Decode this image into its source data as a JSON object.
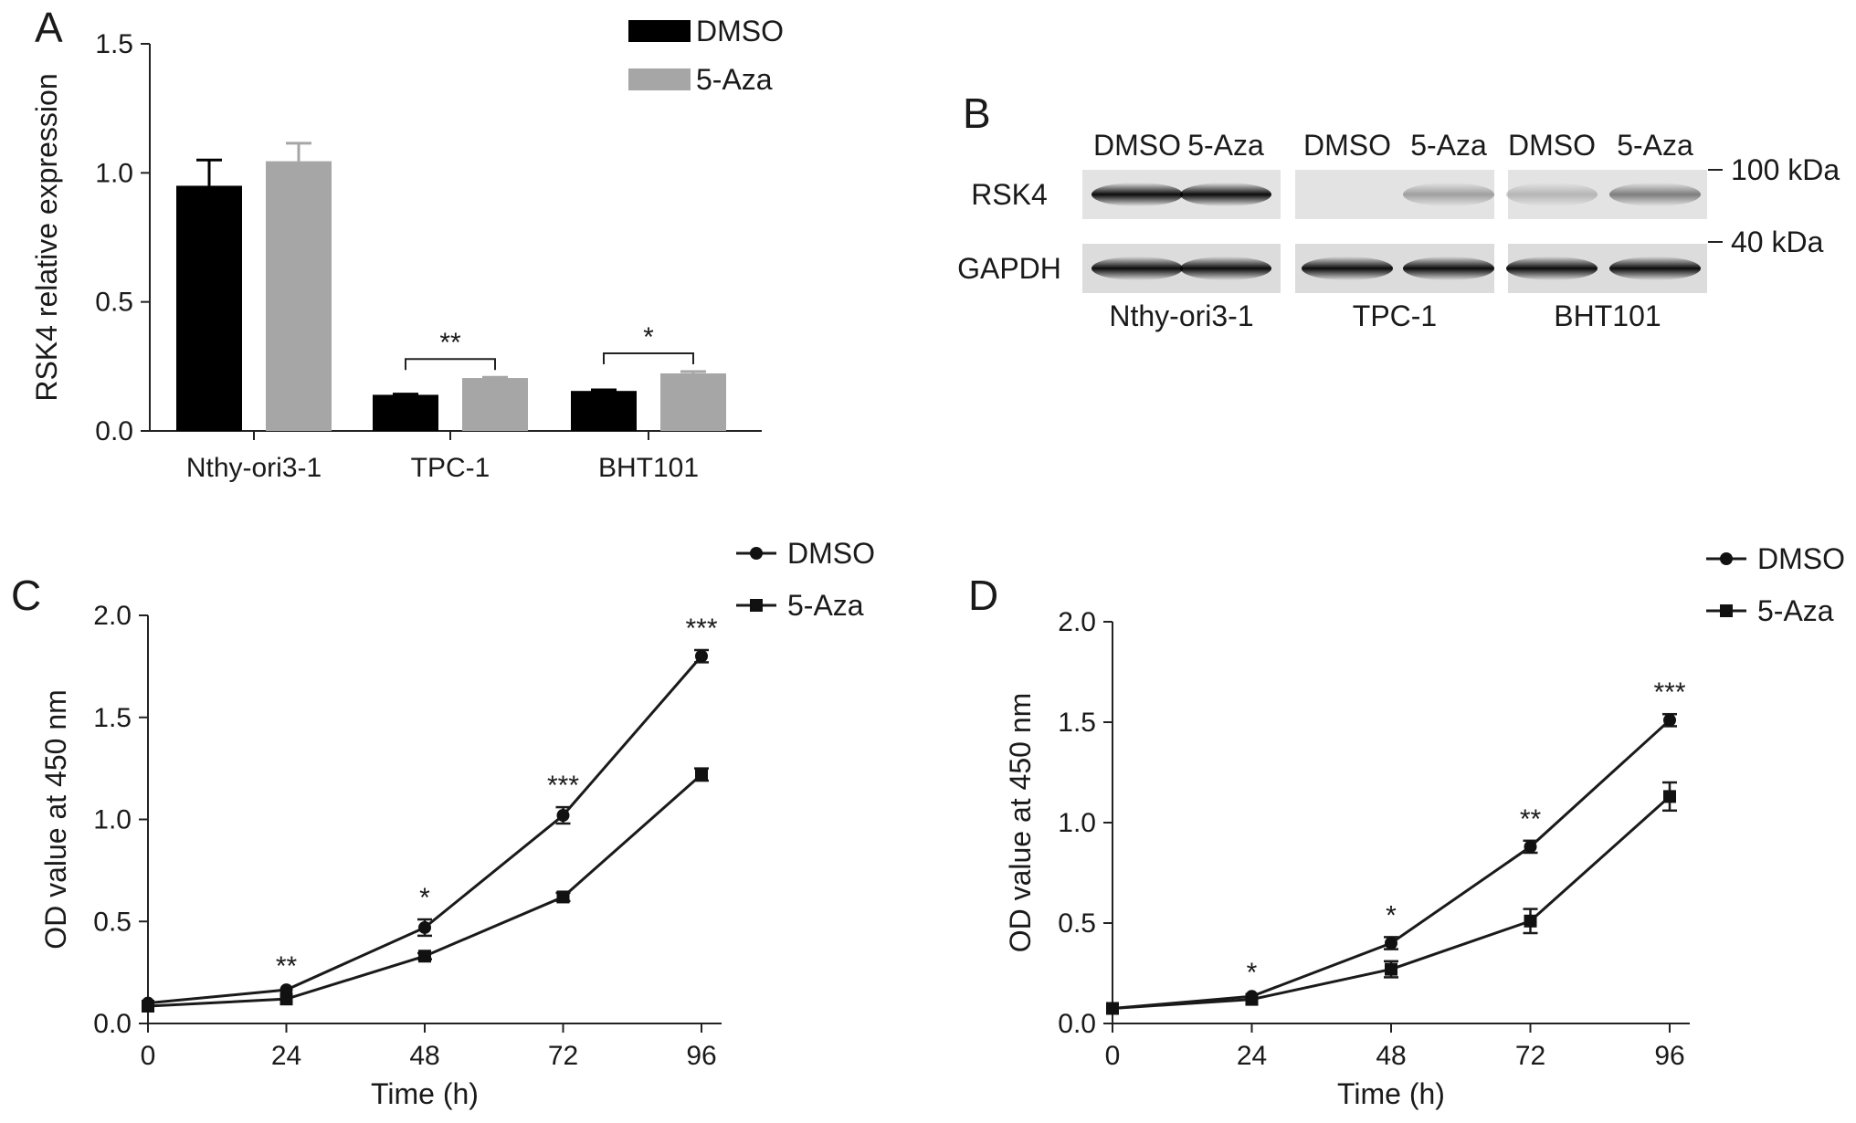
{
  "panel_letters": {
    "a": "A",
    "b": "B",
    "c": "C",
    "d": "D"
  },
  "chart_data": [
    {
      "panel": "A",
      "type": "bar",
      "ylabel": "RSK4 relative expression",
      "xlabel": "",
      "categories": [
        "Nthy-ori3-1",
        "TPC-1",
        "BHT101"
      ],
      "series": [
        {
          "name": "DMSO",
          "values": [
            0.95,
            0.14,
            0.155
          ],
          "errors": [
            0.1,
            0.003,
            0.004
          ],
          "color": "#000000"
        },
        {
          "name": "5-Aza",
          "values": [
            1.045,
            0.205,
            0.223
          ],
          "errors": [
            0.07,
            0.003,
            0.007
          ],
          "color": "#a6a6a6"
        }
      ],
      "ylim": [
        0,
        1.5
      ],
      "yticks": [
        "0.0",
        "0.5",
        "1.0",
        "1.5"
      ],
      "significance": [
        "",
        "**",
        "*"
      ],
      "legend": "top-right"
    },
    {
      "panel": "C",
      "type": "line",
      "xlabel": "Time (h)",
      "ylabel": "OD value at 450 nm",
      "x": [
        0,
        24,
        48,
        72,
        96
      ],
      "xticks": [
        "0",
        "24",
        "48",
        "72",
        "96"
      ],
      "series": [
        {
          "name": "DMSO",
          "marker": "circle",
          "values": [
            0.1,
            0.165,
            0.47,
            1.02,
            1.8
          ],
          "errors": [
            0.01,
            0.01,
            0.04,
            0.04,
            0.03
          ]
        },
        {
          "name": "5-Aza",
          "marker": "square",
          "values": [
            0.085,
            0.12,
            0.33,
            0.62,
            1.22
          ],
          "errors": [
            0.01,
            0.01,
            0.015,
            0.02,
            0.03
          ]
        }
      ],
      "ylim": [
        0,
        2.0
      ],
      "yticks": [
        "0.0",
        "0.5",
        "1.0",
        "1.5",
        "2.0"
      ],
      "significance": [
        "",
        "**",
        "*",
        "***",
        "***"
      ],
      "legend": "top-right"
    },
    {
      "panel": "D",
      "type": "line",
      "xlabel": "Time (h)",
      "ylabel": "OD value at 450 nm",
      "x": [
        0,
        24,
        48,
        72,
        96
      ],
      "xticks": [
        "0",
        "24",
        "48",
        "72",
        "96"
      ],
      "series": [
        {
          "name": "DMSO",
          "marker": "circle",
          "values": [
            0.075,
            0.135,
            0.4,
            0.88,
            1.51
          ],
          "errors": [
            0.01,
            0.01,
            0.03,
            0.03,
            0.03
          ]
        },
        {
          "name": "5-Aza",
          "marker": "square",
          "values": [
            0.075,
            0.12,
            0.27,
            0.51,
            1.13
          ],
          "errors": [
            0.01,
            0.01,
            0.04,
            0.06,
            0.07
          ]
        }
      ],
      "ylim": [
        0,
        2.0
      ],
      "yticks": [
        "0.0",
        "0.5",
        "1.0",
        "1.5",
        "2.0"
      ],
      "significance": [
        "",
        "*",
        "*",
        "**",
        "***"
      ],
      "legend": "top-right"
    }
  ],
  "western_blot": {
    "panel": "B",
    "lanes": [
      "DMSO",
      "5-Aza",
      "DMSO",
      "5-Aza",
      "DMSO",
      "5-Aza"
    ],
    "rows": [
      "RSK4",
      "GAPDH"
    ],
    "cell_lines": [
      "Nthy-ori3-1",
      "TPC-1",
      "BHT101"
    ],
    "markers": [
      "100 kDa",
      "40 kDa"
    ],
    "rsk4_band_intensity": [
      0.95,
      0.95,
      0.0,
      0.3,
      0.2,
      0.45
    ],
    "gapdh_band_intensity": [
      0.95,
      0.95,
      0.95,
      0.95,
      0.95,
      0.95
    ]
  }
}
